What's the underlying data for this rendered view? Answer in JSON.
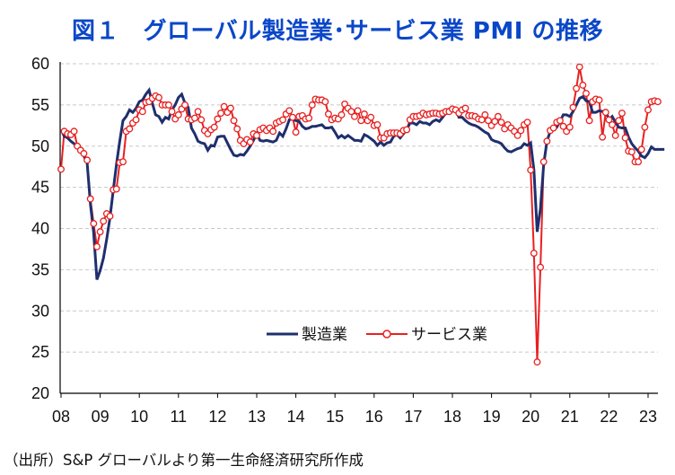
{
  "title": "図１　グローバル製造業･サービス業 PMI の推移",
  "source": "（出所）S&P グローバルより第一生命経済研究所作成",
  "colors": {
    "manufacturing": "#1f2f6e",
    "services": "#e82020",
    "title": "#0a47c8",
    "grid": "#c8c8c8"
  },
  "chart_data": {
    "type": "line",
    "title": "図１　グローバル製造業･サービス業 PMI の推移",
    "xlabel": "",
    "ylabel": "",
    "ylim": [
      20,
      60
    ],
    "yticks": [
      20,
      25,
      30,
      35,
      40,
      45,
      50,
      55,
      60
    ],
    "x_start": 2008,
    "x_step_months": 1,
    "xtick_labels": [
      "08",
      "09",
      "10",
      "11",
      "12",
      "13",
      "14",
      "15",
      "16",
      "17",
      "18",
      "19",
      "20",
      "21",
      "22",
      "23"
    ],
    "grid": "horizontal dashed",
    "legend_position": "lower-center",
    "series": [
      {
        "name": "製造業",
        "marker": "none",
        "values": [
          52.0,
          51.2,
          51.0,
          50.6,
          50.3,
          49.9,
          49.5,
          48.8,
          48.0,
          43.0,
          39.5,
          33.8,
          34.9,
          36.4,
          38.7,
          41.3,
          44.6,
          47.8,
          50.6,
          53.1,
          53.6,
          54.4,
          54.1,
          54.6,
          55.4,
          55.6,
          56.3,
          56.8,
          55.2,
          53.8,
          53.6,
          52.9,
          53.5,
          53.3,
          54.4,
          55.0,
          55.9,
          56.3,
          55.2,
          54.7,
          52.2,
          51.5,
          50.6,
          50.4,
          50.3,
          49.5,
          50.1,
          50.0,
          51.1,
          51.2,
          51.2,
          50.4,
          49.6,
          48.9,
          48.8,
          49.0,
          48.9,
          49.4,
          50.0,
          50.7,
          51.5,
          50.7,
          50.6,
          50.7,
          50.6,
          50.5,
          50.7,
          51.6,
          51.2,
          52.1,
          53.2,
          53.3,
          53.1,
          53.0,
          52.4,
          52.1,
          52.2,
          52.4,
          52.4,
          52.5,
          52.6,
          52.2,
          52.2,
          52.3,
          51.7,
          51.0,
          51.3,
          51.0,
          51.3,
          51.0,
          50.7,
          50.7,
          50.6,
          51.4,
          51.2,
          50.9,
          50.6,
          50.1,
          50.5,
          50.1,
          50.4,
          50.5,
          51.2,
          51.4,
          51.0,
          51.5,
          52.0,
          52.8,
          52.8,
          52.6,
          53.0,
          52.8,
          52.8,
          52.6,
          53.0,
          53.2,
          53.0,
          53.5,
          54.0,
          54.5,
          54.4,
          54.4,
          53.5,
          53.5,
          53.1,
          52.8,
          52.6,
          52.5,
          52.3,
          52.0,
          51.7,
          51.5,
          50.8,
          50.6,
          50.5,
          50.3,
          49.8,
          49.4,
          49.3,
          49.5,
          49.7,
          49.8,
          50.3,
          50.1,
          50.4,
          47.1,
          39.6,
          42.4,
          47.8,
          50.6,
          51.8,
          52.4,
          52.3,
          53.0,
          53.8,
          53.8,
          53.6,
          54.2,
          55.0,
          55.8,
          56.0,
          55.5,
          55.4,
          54.1,
          54.1,
          54.3,
          54.2,
          54.3,
          53.2,
          53.6,
          52.9,
          52.3,
          52.2,
          52.2,
          51.1,
          50.3,
          49.8,
          49.4,
          48.8,
          48.6,
          49.1,
          49.9,
          49.6,
          49.6,
          49.6,
          49.6
        ]
      },
      {
        "name": "サービス業",
        "marker": "open-circle",
        "values": [
          47.2,
          51.8,
          51.5,
          51.4,
          51.8,
          50.0,
          49.5,
          49.1,
          48.3,
          43.6,
          40.6,
          37.8,
          39.6,
          40.9,
          41.8,
          41.5,
          44.7,
          44.8,
          48.0,
          48.1,
          51.8,
          52.1,
          52.8,
          53.2,
          54.4,
          54.2,
          55.3,
          55.4,
          55.8,
          56.1,
          55.9,
          55.0,
          55.0,
          55.0,
          54.2,
          53.3,
          53.8,
          54.5,
          55.0,
          53.3,
          53.2,
          53.4,
          54.2,
          53.2,
          51.9,
          51.5,
          52.0,
          52.3,
          53.3,
          54.0,
          54.8,
          54.1,
          54.6,
          53.1,
          52.1,
          50.7,
          50.3,
          50.8,
          50.5,
          51.5,
          51.3,
          52.0,
          52.2,
          51.9,
          52.2,
          51.8,
          52.8,
          53.0,
          53.2,
          53.9,
          54.3,
          53.5,
          51.7,
          53.6,
          53.7,
          53.3,
          53.4,
          55.0,
          55.7,
          55.6,
          55.6,
          55.4,
          53.9,
          53.2,
          53.4,
          53.3,
          53.8,
          55.1,
          54.6,
          54.2,
          53.6,
          54.3,
          53.1,
          53.9,
          53.1,
          53.5,
          52.5,
          52.6,
          51.0,
          51.0,
          51.5,
          51.6,
          51.6,
          51.6,
          51.5,
          51.9,
          52.0,
          53.2,
          53.6,
          53.6,
          53.7,
          54.0,
          53.8,
          53.9,
          54.0,
          54.0,
          53.9,
          54.0,
          54.2,
          54.2,
          54.5,
          54.4,
          54.0,
          54.4,
          54.6,
          53.7,
          53.7,
          53.6,
          53.3,
          53.2,
          53.8,
          53.1,
          52.5,
          53.0,
          53.6,
          52.9,
          52.1,
          52.6,
          52.2,
          51.8,
          51.3,
          51.9,
          52.6,
          52.9,
          47.1,
          37.0,
          23.8,
          35.3,
          48.1,
          50.6,
          51.9,
          52.2,
          52.9,
          53.1,
          52.4,
          51.8,
          52.3,
          54.7,
          57.0,
          59.6,
          57.4,
          56.4,
          53.1,
          55.4,
          55.7,
          55.6,
          51.1,
          54.1,
          53.2,
          52.6,
          51.3,
          53.1,
          54.0,
          51.0,
          49.4,
          49.3,
          48.1,
          48.1,
          49.6,
          52.3,
          54.4,
          55.4,
          55.5,
          55.4
        ]
      }
    ]
  }
}
